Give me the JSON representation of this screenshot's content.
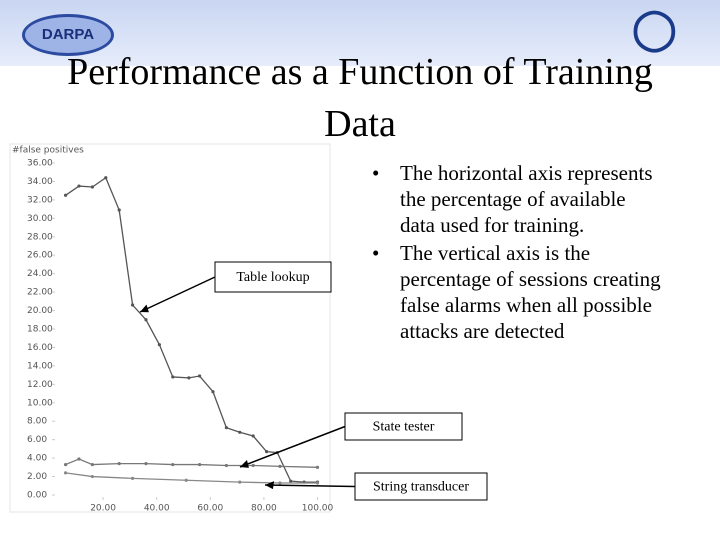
{
  "slide": {
    "logo_left": "DARPA",
    "title": "Performance as a Function of Training Data",
    "bullets": [
      "The horizontal axis represents the percentage of available data used for training.",
      "The vertical axis is the percentage of sessions creating false alarms when all possible attacks are detected"
    ]
  },
  "chart_data": {
    "type": "line",
    "y_label": "#false positives",
    "xlim": [
      0,
      100
    ],
    "ylim": [
      0,
      36
    ],
    "xticks": [
      {
        "value": 20,
        "label": "20.00"
      },
      {
        "value": 40,
        "label": "40.00"
      },
      {
        "value": 60,
        "label": "60.00"
      },
      {
        "value": 80,
        "label": "80.00"
      },
      {
        "value": 100,
        "label": "100.00"
      }
    ],
    "yticks": [
      {
        "value": 0,
        "label": "0.00"
      },
      {
        "value": 2,
        "label": "2.00"
      },
      {
        "value": 4,
        "label": "4.00"
      },
      {
        "value": 6,
        "label": "6.00"
      },
      {
        "value": 8,
        "label": "8.00"
      },
      {
        "value": 10,
        "label": "10.00"
      },
      {
        "value": 12,
        "label": "12.00"
      },
      {
        "value": 14,
        "label": "14.00"
      },
      {
        "value": 16,
        "label": "16.00"
      },
      {
        "value": 18,
        "label": "18.00"
      },
      {
        "value": 20,
        "label": "20.00"
      },
      {
        "value": 22,
        "label": "22.00"
      },
      {
        "value": 24,
        "label": "24.00"
      },
      {
        "value": 26,
        "label": "26.00"
      },
      {
        "value": 28,
        "label": "28.00"
      },
      {
        "value": 30,
        "label": "30.00"
      },
      {
        "value": 32,
        "label": "32.00"
      },
      {
        "value": 34,
        "label": "34.00"
      },
      {
        "value": 36,
        "label": "36.00"
      }
    ],
    "series": [
      {
        "name": "Table lookup",
        "color": "#555555",
        "x": [
          6,
          11,
          16,
          21,
          26,
          31,
          36,
          41,
          46,
          52,
          56,
          61,
          66,
          71,
          76,
          81,
          85,
          90,
          95,
          100
        ],
        "values": [
          32.5,
          33.5,
          33.4,
          34.4,
          30.9,
          20.6,
          19,
          16.3,
          12.8,
          12.7,
          12.9,
          11.2,
          7.3,
          6.8,
          6.4,
          4.7,
          4.6,
          1.5,
          1.4,
          1.4
        ]
      },
      {
        "name": "State tester",
        "color": "#777777",
        "x": [
          6,
          11,
          16,
          26,
          36,
          46,
          56,
          66,
          76,
          86,
          100
        ],
        "values": [
          3.3,
          3.9,
          3.3,
          3.4,
          3.4,
          3.3,
          3.3,
          3.2,
          3.2,
          3.1,
          3.0
        ]
      },
      {
        "name": "String transducer",
        "color": "#888888",
        "x": [
          6,
          16,
          31,
          51,
          71,
          86,
          100
        ],
        "values": [
          2.4,
          2.0,
          1.8,
          1.6,
          1.4,
          1.3,
          1.3
        ]
      }
    ]
  }
}
